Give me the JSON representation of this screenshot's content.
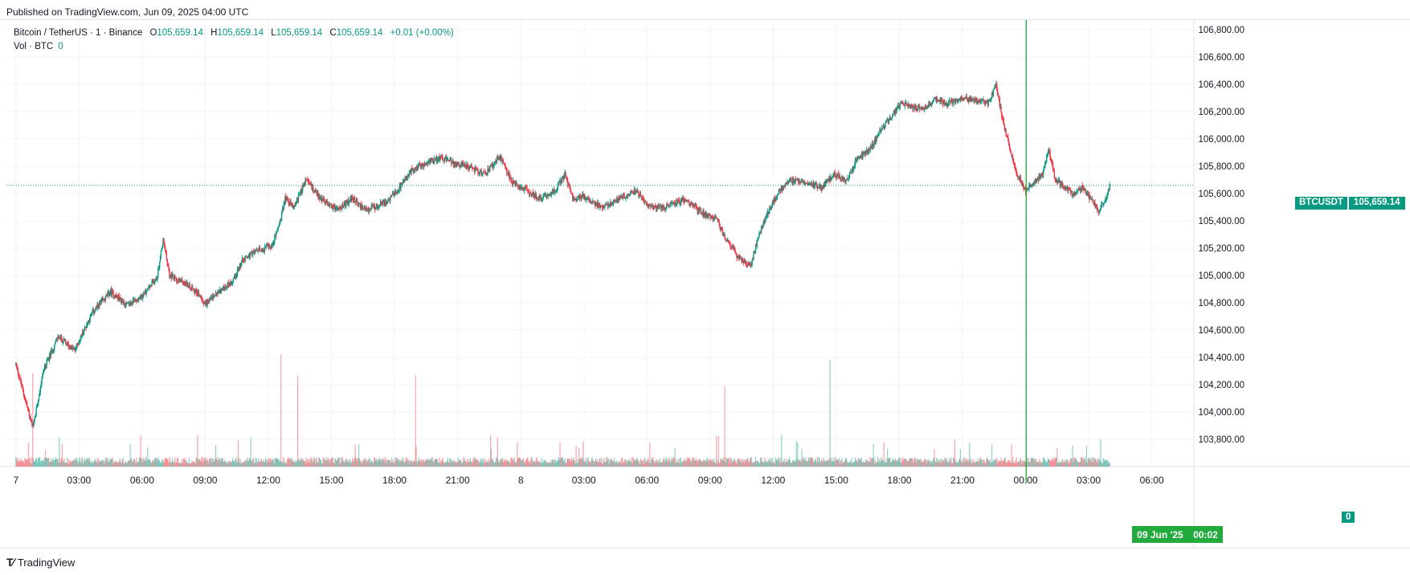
{
  "header": {
    "published": "Published on TradingView.com, Jun 09, 2025 04:00 UTC"
  },
  "legend": {
    "symbol": "Bitcoin / TetherUS · 1 · Binance",
    "o_label": "O",
    "o": "105,659.14",
    "h_label": "H",
    "h": "105,659.14",
    "l_label": "L",
    "l": "105,659.14",
    "c_label": "C",
    "c": "105,659.14",
    "change": "+0.01 (+0.00%)"
  },
  "volume_legend": {
    "label": "Vol · BTC",
    "value": "0"
  },
  "last_price": {
    "symbol": "BTCUSDT",
    "value": "105,659.14"
  },
  "volume_tag": "0",
  "cursor": {
    "date": "09 Jun '25",
    "time": "00:02"
  },
  "footer": {
    "brand": "TradingView"
  },
  "colors": {
    "up": "#089981",
    "down": "#f23645",
    "grid": "#f0f3fa",
    "cursor": "#22ab3c",
    "text": "#131722"
  },
  "chart_data": {
    "type": "candlestick",
    "symbol": "BTCUSDT",
    "interval": "1",
    "exchange": "Binance",
    "ylim": [
      103600,
      106870
    ],
    "y_ticks": [
      103800,
      104000,
      104200,
      104400,
      104600,
      104800,
      105000,
      105200,
      105400,
      105600,
      105800,
      106000,
      106200,
      106400,
      106600,
      106800
    ],
    "y_tick_labels": [
      "103,800.00",
      "104,000.00",
      "104,200.00",
      "104,400.00",
      "104,600.00",
      "104,800.00",
      "105,000.00",
      "105,200.00",
      "105,400.00",
      "105,600.00",
      "105,800.00",
      "106,000.00",
      "106,200.00",
      "106,400.00",
      "106,600.00",
      "106,800.00"
    ],
    "x_ticks": [
      "7",
      "03:00",
      "06:00",
      "09:00",
      "12:00",
      "15:00",
      "18:00",
      "21:00",
      "8",
      "03:00",
      "06:00",
      "09:00",
      "12:00",
      "15:00",
      "18:00",
      "21:00",
      "00:00",
      "03:00",
      "06:00"
    ],
    "x_tick_hours": [
      0,
      3,
      6,
      9,
      12,
      15,
      18,
      21,
      24,
      27,
      30,
      33,
      36,
      39,
      42,
      45,
      48,
      51,
      54
    ],
    "x_range_hours": [
      -0.45,
      56.0
    ],
    "last_data_hour": 52.0,
    "cursor_hour": 48.03,
    "last_price": 105659.14,
    "price_path": [
      [
        0.0,
        104350
      ],
      [
        0.8,
        103880
      ],
      [
        1.3,
        104300
      ],
      [
        2.0,
        104550
      ],
      [
        2.8,
        104450
      ],
      [
        3.6,
        104720
      ],
      [
        4.5,
        104880
      ],
      [
        5.3,
        104780
      ],
      [
        6.0,
        104850
      ],
      [
        6.7,
        104980
      ],
      [
        7.0,
        105260
      ],
      [
        7.3,
        105000
      ],
      [
        8.0,
        104950
      ],
      [
        8.6,
        104880
      ],
      [
        9.0,
        104790
      ],
      [
        9.5,
        104860
      ],
      [
        10.3,
        104960
      ],
      [
        10.8,
        105120
      ],
      [
        11.5,
        105180
      ],
      [
        12.2,
        105220
      ],
      [
        12.6,
        105420
      ],
      [
        12.8,
        105570
      ],
      [
        13.2,
        105500
      ],
      [
        13.8,
        105700
      ],
      [
        14.5,
        105560
      ],
      [
        15.3,
        105480
      ],
      [
        16.0,
        105560
      ],
      [
        16.6,
        105480
      ],
      [
        17.1,
        105500
      ],
      [
        17.8,
        105560
      ],
      [
        18.3,
        105650
      ],
      [
        18.8,
        105770
      ],
      [
        19.5,
        105820
      ],
      [
        20.2,
        105870
      ],
      [
        20.8,
        105820
      ],
      [
        21.5,
        105800
      ],
      [
        22.3,
        105740
      ],
      [
        23.0,
        105870
      ],
      [
        23.6,
        105680
      ],
      [
        24.3,
        105620
      ],
      [
        24.9,
        105560
      ],
      [
        25.6,
        105620
      ],
      [
        26.1,
        105740
      ],
      [
        26.5,
        105550
      ],
      [
        27.0,
        105580
      ],
      [
        27.8,
        105500
      ],
      [
        28.7,
        105560
      ],
      [
        29.5,
        105620
      ],
      [
        30.0,
        105510
      ],
      [
        30.8,
        105500
      ],
      [
        31.8,
        105560
      ],
      [
        32.6,
        105460
      ],
      [
        33.3,
        105420
      ],
      [
        33.7,
        105280
      ],
      [
        34.3,
        105140
      ],
      [
        34.9,
        105060
      ],
      [
        35.3,
        105280
      ],
      [
        35.8,
        105480
      ],
      [
        36.3,
        105620
      ],
      [
        36.8,
        105700
      ],
      [
        37.5,
        105690
      ],
      [
        38.3,
        105640
      ],
      [
        38.9,
        105740
      ],
      [
        39.5,
        105690
      ],
      [
        40.0,
        105860
      ],
      [
        40.6,
        105920
      ],
      [
        41.1,
        106060
      ],
      [
        41.6,
        106160
      ],
      [
        42.1,
        106260
      ],
      [
        42.6,
        106230
      ],
      [
        43.1,
        106220
      ],
      [
        43.7,
        106290
      ],
      [
        44.3,
        106260
      ],
      [
        45.0,
        106300
      ],
      [
        45.6,
        106280
      ],
      [
        46.2,
        106260
      ],
      [
        46.6,
        106390
      ],
      [
        46.9,
        106140
      ],
      [
        47.2,
        105960
      ],
      [
        47.6,
        105740
      ],
      [
        48.0,
        105620
      ],
      [
        48.4,
        105680
      ],
      [
        48.8,
        105740
      ],
      [
        49.1,
        105930
      ],
      [
        49.4,
        105700
      ],
      [
        49.9,
        105650
      ],
      [
        50.3,
        105580
      ],
      [
        50.7,
        105650
      ],
      [
        51.1,
        105560
      ],
      [
        51.5,
        105470
      ],
      [
        51.8,
        105560
      ],
      [
        52.0,
        105659.14
      ]
    ],
    "volume": {
      "baseline": "bottom of price pane",
      "notable_spikes": [
        {
          "hour": 0.8,
          "label": "low wick"
        },
        {
          "hour": 12.6,
          "label": "spike"
        },
        {
          "hour": 13.4,
          "label": "spike"
        },
        {
          "hour": 19.0,
          "label": "spike"
        },
        {
          "hour": 33.7,
          "label": "spike"
        },
        {
          "hour": 38.7,
          "label": "spike"
        }
      ]
    }
  }
}
